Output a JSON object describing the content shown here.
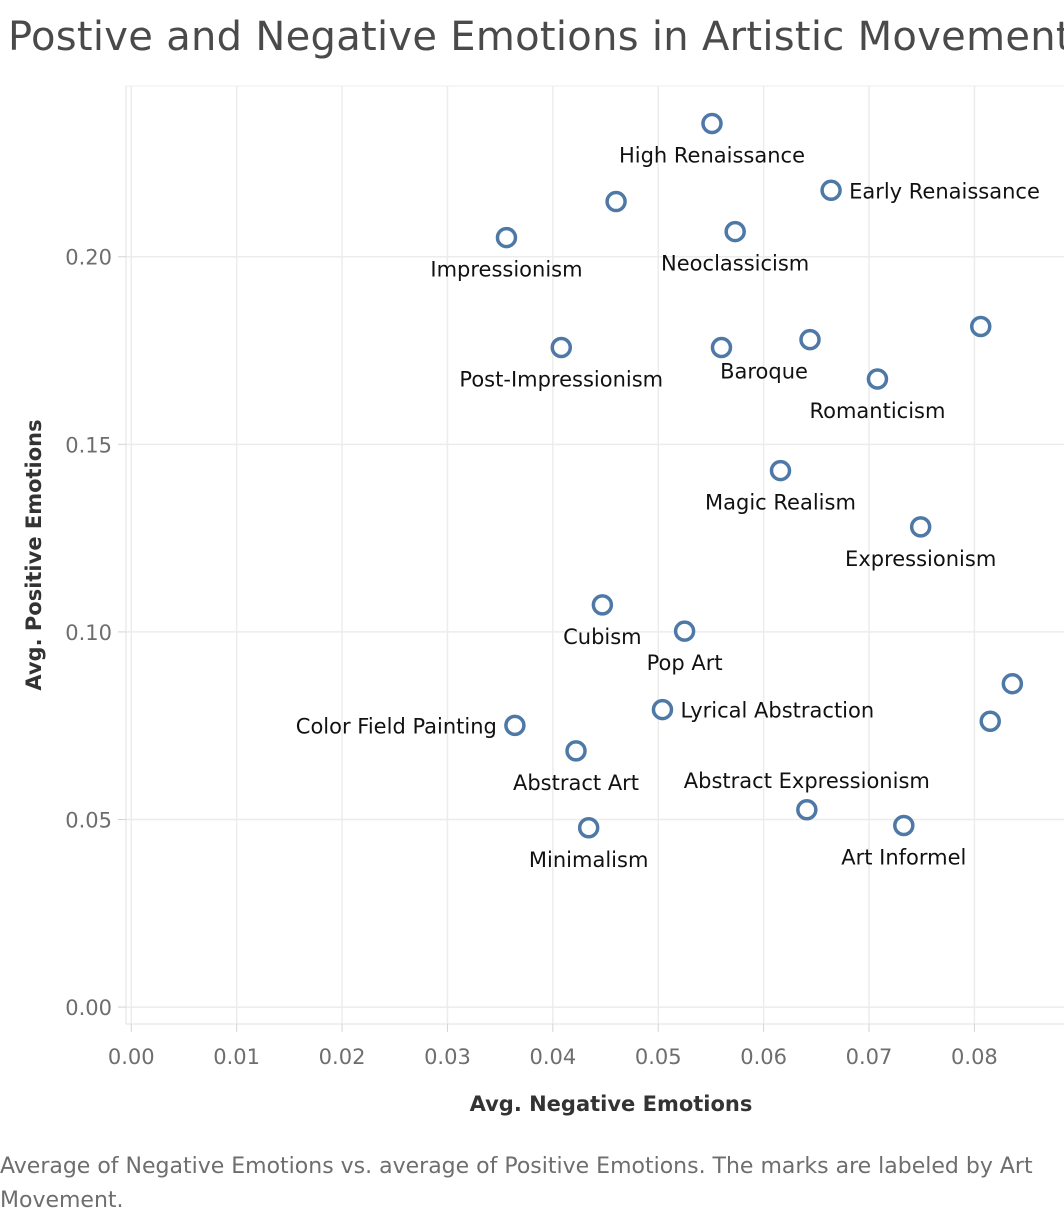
{
  "chart_data": {
    "type": "scatter",
    "title": "Postive and Negative Emotions in Artistic Movements",
    "caption": "Average of Negative Emotions vs. average of Positive Emotions.  The marks are labeled by Art Movement.",
    "xlabel": "Avg. Negative Emotions",
    "ylabel": "Avg. Positive Emotions",
    "xlim": [
      -0.0005,
      0.0885
    ],
    "ylim": [
      -0.0045,
      0.2455
    ],
    "xticks": [
      0.0,
      0.01,
      0.02,
      0.03,
      0.04,
      0.05,
      0.06,
      0.07,
      0.08
    ],
    "xtick_labels": [
      "0.00",
      "0.01",
      "0.02",
      "0.03",
      "0.04",
      "0.05",
      "0.06",
      "0.07",
      "0.08"
    ],
    "yticks": [
      0.0,
      0.05,
      0.1,
      0.15,
      0.2
    ],
    "ytick_labels": [
      "0.00",
      "0.05",
      "0.10",
      "0.15",
      "0.20"
    ],
    "grid": true,
    "marker": "hollow-circle",
    "mark_color": "#4e79a7",
    "points": [
      {
        "label": "High Renaissance",
        "x": 0.0551,
        "y": 0.2355,
        "pos": "below"
      },
      {
        "label": "Early Renaissance",
        "x": 0.0664,
        "y": 0.2177,
        "pos": "right"
      },
      {
        "label": "",
        "x": 0.046,
        "y": 0.2147,
        "pos": "none"
      },
      {
        "label": "Neoclassicism",
        "x": 0.0573,
        "y": 0.2067,
        "pos": "below"
      },
      {
        "label": "Impressionism",
        "x": 0.0356,
        "y": 0.2051,
        "pos": "below"
      },
      {
        "label": "",
        "x": 0.0806,
        "y": 0.1814,
        "pos": "none"
      },
      {
        "label": "Baroque",
        "x": 0.0644,
        "y": 0.1779,
        "pos": "below-left"
      },
      {
        "label": "Post-Impressionism",
        "x": 0.0408,
        "y": 0.1758,
        "pos": "below"
      },
      {
        "label": "",
        "x": 0.056,
        "y": 0.1758,
        "pos": "none"
      },
      {
        "label": "Romanticism",
        "x": 0.0708,
        "y": 0.1674,
        "pos": "below"
      },
      {
        "label": "Magic Realism",
        "x": 0.0616,
        "y": 0.143,
        "pos": "below"
      },
      {
        "label": "Expressionism",
        "x": 0.0749,
        "y": 0.128,
        "pos": "below"
      },
      {
        "label": "Cubism",
        "x": 0.0447,
        "y": 0.1072,
        "pos": "below"
      },
      {
        "label": "Pop Art",
        "x": 0.0525,
        "y": 0.1002,
        "pos": "below"
      },
      {
        "label": "",
        "x": 0.0836,
        "y": 0.0862,
        "pos": "none"
      },
      {
        "label": "Lyrical Abstraction",
        "x": 0.0504,
        "y": 0.0793,
        "pos": "right"
      },
      {
        "label": "",
        "x": 0.0815,
        "y": 0.0762,
        "pos": "none"
      },
      {
        "label": "Color Field Painting",
        "x": 0.0364,
        "y": 0.0751,
        "pos": "left"
      },
      {
        "label": "Abstract Art",
        "x": 0.0422,
        "y": 0.0683,
        "pos": "below"
      },
      {
        "label": "Abstract Expressionism",
        "x": 0.0641,
        "y": 0.0526,
        "pos": "above"
      },
      {
        "label": "Art Informel",
        "x": 0.0733,
        "y": 0.0484,
        "pos": "below"
      },
      {
        "label": "Minimalism",
        "x": 0.0434,
        "y": 0.0478,
        "pos": "below"
      }
    ]
  }
}
